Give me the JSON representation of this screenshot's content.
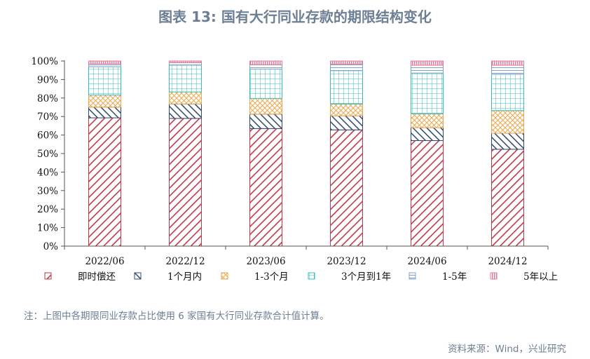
{
  "figure": {
    "title": "图表 13: 国有大行同业存款的期限结构变化",
    "note": "注：上图中各期限同业存款占比使用 6 家国有大行同业存款合计值计算。",
    "source": "资料来源：Wind，兴业研究"
  },
  "chart_data": {
    "type": "bar",
    "stacked": true,
    "categories": [
      "2022/06",
      "2022/12",
      "2023/06",
      "2023/12",
      "2024/06",
      "2024/12"
    ],
    "ylim": [
      0,
      100
    ],
    "yticks": [
      "0%",
      "10%",
      "20%",
      "30%",
      "40%",
      "50%",
      "60%",
      "70%",
      "80%",
      "90%",
      "100%"
    ],
    "legend_position": "bottom",
    "grid": false,
    "series": [
      {
        "name": "即时偿还",
        "color": "#c0394b",
        "pattern": "diag-right",
        "values": [
          69.3,
          69.0,
          63.5,
          62.8,
          57.0,
          52.3
        ]
      },
      {
        "name": "1个月内",
        "color": "#2f4a6d",
        "pattern": "diag-left",
        "values": [
          5.8,
          7.8,
          7.8,
          7.6,
          7.0,
          8.7
        ]
      },
      {
        "name": "1-3个月",
        "color": "#e8a84e",
        "pattern": "crosshatch",
        "values": [
          6.5,
          6.5,
          8.5,
          6.4,
          7.5,
          12.2
        ]
      },
      {
        "name": "3个月到1年",
        "color": "#3bbcbc",
        "pattern": "grid",
        "values": [
          15.3,
          14.5,
          15.8,
          18.0,
          22.0,
          19.6
        ]
      },
      {
        "name": "1-5年",
        "color": "#7fa3c8",
        "pattern": "horizontal",
        "values": [
          1.6,
          1.3,
          2.4,
          3.6,
          4.2,
          4.9
        ]
      },
      {
        "name": "5年以上",
        "color": "#e07b9a",
        "pattern": "vertical",
        "values": [
          1.5,
          0.9,
          2.0,
          1.6,
          2.3,
          2.3
        ]
      }
    ]
  }
}
